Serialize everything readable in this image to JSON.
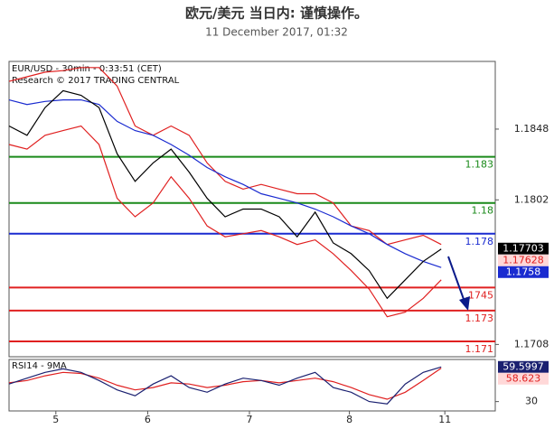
{
  "header": {
    "title": "欧元/美元 当日内: 谨慎操作。",
    "date": "11 December 2017, 01:32"
  },
  "chart_data": [
    {
      "type": "line",
      "title": "EUR/USD - 30min - 0:33:51 (CET)",
      "subtitle": "Research © 2017 TRADING CENTRAL",
      "x": [
        0,
        1,
        2,
        3,
        4,
        5,
        6,
        7,
        8,
        9,
        10,
        11,
        12,
        13,
        14,
        15,
        16,
        17,
        18,
        19,
        20,
        21,
        22,
        23,
        24
      ],
      "xlim": [
        0,
        27
      ],
      "xticks": [
        {
          "value": 2.6,
          "label": "5"
        },
        {
          "value": 7.7,
          "label": "6"
        },
        {
          "value": 13.35,
          "label": "7"
        },
        {
          "value": 18.9,
          "label": "8"
        },
        {
          "value": 24.2,
          "label": "11"
        }
      ],
      "ylim": [
        1.17,
        1.1892
      ],
      "yticks": [
        1.1848,
        1.1802,
        1.1708
      ],
      "series": [
        {
          "color": "#e02020",
          "values": [
            1.1879,
            1.1882,
            1.1885,
            1.1886,
            1.1888,
            1.1888,
            1.1876,
            1.185,
            1.1844,
            1.185,
            1.1844,
            1.1826,
            1.1814,
            1.1809,
            1.1812,
            1.1809,
            1.1806,
            1.1806,
            1.18,
            1.1785,
            1.1782,
            1.1773,
            1.1776,
            1.1779,
            1.1773
          ]
        },
        {
          "color": "#e02020",
          "values": [
            1.1838,
            1.1835,
            1.1844,
            1.1847,
            1.185,
            1.1838,
            1.1803,
            1.1791,
            1.18,
            1.1817,
            1.1803,
            1.1785,
            1.1778,
            1.178,
            1.1782,
            1.1778,
            1.1773,
            1.1776,
            1.1767,
            1.1756,
            1.1744,
            1.1726,
            1.1729,
            1.1738,
            1.175
          ]
        },
        {
          "color": "#1a2bd0",
          "values": [
            1.1867,
            1.1864,
            1.1866,
            1.1867,
            1.1867,
            1.1864,
            1.1853,
            1.1847,
            1.1844,
            1.1838,
            1.1831,
            1.1823,
            1.1817,
            1.1812,
            1.1806,
            1.1803,
            1.18,
            1.1796,
            1.1791,
            1.1785,
            1.178,
            1.1773,
            1.1767,
            1.1762,
            1.1758
          ]
        },
        {
          "color": "#000000",
          "values": [
            1.185,
            1.1844,
            1.1862,
            1.1873,
            1.187,
            1.1862,
            1.1832,
            1.1814,
            1.1826,
            1.1835,
            1.182,
            1.1803,
            1.1791,
            1.1796,
            1.1796,
            1.1791,
            1.1778,
            1.1794,
            1.1774,
            1.1767,
            1.1756,
            1.1738,
            1.175,
            1.1762,
            1.177
          ]
        }
      ],
      "levels": [
        {
          "value": 1.183,
          "color": "#1a8a1a"
        },
        {
          "value": 1.18,
          "color": "#1a8a1a"
        },
        {
          "value": 1.178,
          "color": "#1a2bd0"
        },
        {
          "value": 1.1745,
          "label": ".1745",
          "color": "#e02020"
        },
        {
          "value": 1.173,
          "color": "#e02020"
        },
        {
          "value": 1.171,
          "color": "#e02020"
        }
      ],
      "tags": [
        {
          "value": 1.17703,
          "color": "#000000",
          "text_color": "#ffffff"
        },
        {
          "value": 1.17628,
          "color": "#ffd8d8",
          "text_color": "#e02020"
        },
        {
          "value": 1.1758,
          "color": "#1a2bd0",
          "text_color": "#ffffff"
        }
      ]
    },
    {
      "type": "line",
      "title": "RSI14 - 9MA",
      "x": [
        0,
        1,
        2,
        3,
        4,
        5,
        6,
        7,
        8,
        9,
        10,
        11,
        12,
        13,
        14,
        15,
        16,
        17,
        18,
        19,
        20,
        21,
        22,
        23,
        24
      ],
      "xlim": [
        0,
        27
      ],
      "ylim": [
        22,
        66
      ],
      "yticks": [
        30
      ],
      "series": [
        {
          "color": "#e02020",
          "values": [
            46,
            48,
            52,
            55,
            54,
            50,
            44,
            40,
            42,
            46,
            45,
            42,
            44,
            47,
            48,
            46,
            48,
            50,
            47,
            42,
            36,
            32,
            38,
            48,
            58.6
          ]
        },
        {
          "color": "#1a2070",
          "values": [
            45,
            50,
            55,
            58,
            55,
            48,
            40,
            35,
            45,
            52,
            42,
            38,
            45,
            50,
            48,
            44,
            50,
            55,
            42,
            38,
            30,
            28,
            45,
            55,
            59.6
          ]
        }
      ],
      "tags": [
        {
          "value": 59.5997,
          "color": "#1a2070",
          "text_color": "#ffffff"
        },
        {
          "value": 58.623,
          "color": "#ffd8d8",
          "text_color": "#e02020"
        }
      ]
    }
  ]
}
